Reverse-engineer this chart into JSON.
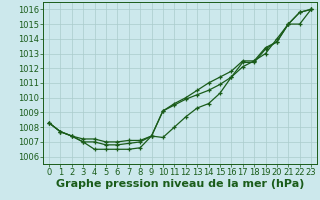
{
  "xlabel": "Graphe pression niveau de la mer (hPa)",
  "ylim": [
    1005.5,
    1016.5
  ],
  "xlim": [
    -0.5,
    23.5
  ],
  "yticks": [
    1006,
    1007,
    1008,
    1009,
    1010,
    1011,
    1012,
    1013,
    1014,
    1015,
    1016
  ],
  "xticks": [
    0,
    1,
    2,
    3,
    4,
    5,
    6,
    7,
    8,
    9,
    10,
    11,
    12,
    13,
    14,
    15,
    16,
    17,
    18,
    19,
    20,
    21,
    22,
    23
  ],
  "background_color": "#cce8ec",
  "grid_color": "#aacccc",
  "line_color": "#1a5c1a",
  "marker": "+",
  "line_width": 0.9,
  "markersize": 3.5,
  "lines": [
    [
      1008.3,
      1007.7,
      1007.4,
      1007.0,
      1006.5,
      1006.5,
      1006.5,
      1006.5,
      1006.6,
      1007.4,
      1007.3,
      1008.0,
      1008.7,
      1009.3,
      1009.6,
      1010.3,
      1011.4,
      1012.4,
      1012.4,
      1013.3,
      1013.8,
      1015.0,
      1015.8,
      1016.0
    ],
    [
      1008.3,
      1007.7,
      1007.4,
      1007.2,
      1007.2,
      1007.0,
      1007.0,
      1007.1,
      1007.1,
      1007.4,
      1009.1,
      1009.5,
      1009.9,
      1010.2,
      1010.5,
      1010.9,
      1011.4,
      1012.1,
      1012.5,
      1013.0,
      1014.0,
      1015.0,
      1015.8,
      1016.0
    ],
    [
      1008.3,
      1007.7,
      1007.4,
      1007.0,
      1007.0,
      1006.8,
      1006.8,
      1006.9,
      1007.0,
      1007.4,
      1009.1,
      1009.6,
      1010.0,
      1010.5,
      1011.0,
      1011.4,
      1011.8,
      1012.5,
      1012.5,
      1013.4,
      1013.8,
      1015.0,
      1015.0,
      1016.0
    ]
  ],
  "title_fontsize": 8,
  "tick_fontsize": 6,
  "tick_color": "#1a5c1a",
  "label_color": "#1a5c1a",
  "spine_color": "#1a5c1a"
}
